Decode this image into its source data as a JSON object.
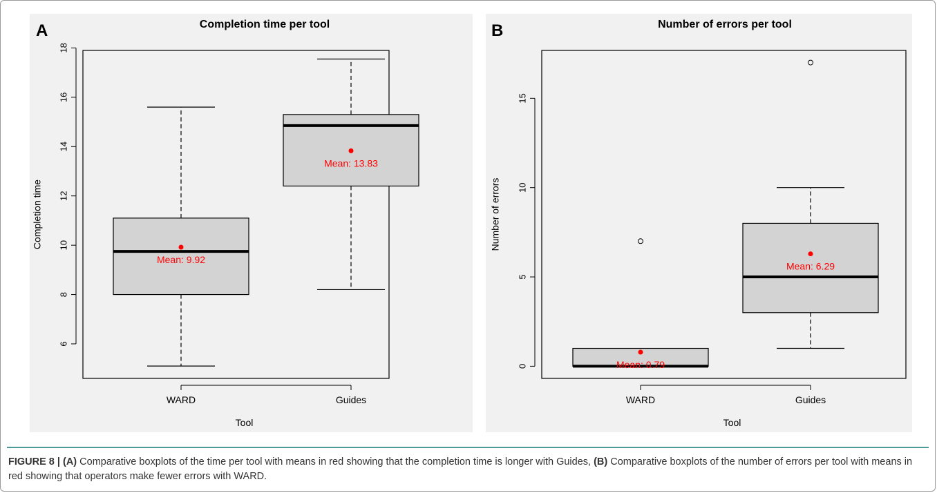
{
  "figure_caption": {
    "label": "FIGURE 8 | ",
    "part_a_tag": "(A)",
    "part_a_text": " Comparative boxplots of the time per tool with means in red showing that the completion time is longer with Guides, ",
    "part_b_tag": "(B)",
    "part_b_text": " Comparative boxplots of the number of errors per tool with means in red showing that operators make fewer errors with WARD."
  },
  "colors": {
    "box_fill": "#d3d3d3",
    "mean_marker": "#ff0000",
    "panel_bg": "#f1f1f1",
    "caption_rule": "#4a9a9c"
  },
  "chart_data": [
    {
      "type": "box",
      "panel_label": "A",
      "title": "Completion time per tool",
      "xlabel": "Tool",
      "ylabel": "Completion time",
      "categories": [
        "WARD",
        "Guides"
      ],
      "ylim": [
        4.6,
        17.9
      ],
      "yticks": [
        6,
        8,
        10,
        12,
        14,
        16,
        18
      ],
      "boxes": [
        {
          "name": "WARD",
          "min": 5.1,
          "q1": 8.0,
          "median": 9.75,
          "q3": 11.1,
          "max": 15.6,
          "outliers": [],
          "mean": 9.92,
          "mean_label": "Mean: 9.92"
        },
        {
          "name": "Guides",
          "min": 8.2,
          "q1": 12.4,
          "median": 14.85,
          "q3": 15.3,
          "max": 17.55,
          "outliers": [],
          "mean": 13.83,
          "mean_label": "Mean: 13.83"
        }
      ]
    },
    {
      "type": "box",
      "panel_label": "B",
      "title": "Number of errors per tool",
      "xlabel": "Tool",
      "ylabel": "Number of errors",
      "categories": [
        "WARD",
        "Guides"
      ],
      "ylim": [
        -0.68,
        17.68
      ],
      "yticks": [
        0,
        5,
        10,
        15
      ],
      "boxes": [
        {
          "name": "WARD",
          "min": 0,
          "q1": 0,
          "median": 0,
          "q3": 1,
          "max": 1,
          "outliers": [
            7
          ],
          "mean": 0.79,
          "mean_label": "Mean: 0.79"
        },
        {
          "name": "Guides",
          "min": 1,
          "q1": 3,
          "median": 5,
          "q3": 8,
          "max": 10,
          "outliers": [
            17
          ],
          "mean": 6.29,
          "mean_label": "Mean: 6.29"
        }
      ]
    }
  ]
}
